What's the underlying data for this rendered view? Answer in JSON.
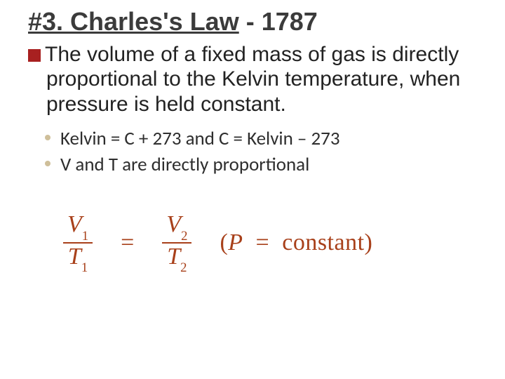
{
  "title": {
    "underlined": "#3. Charles's Law",
    "rest": " - 1787"
  },
  "main": "The volume of a fixed mass of gas is directly proportional to the Kelvin temperature, when pressure is held constant.",
  "subs": [
    "Kelvin = C + 273  and  C = Kelvin – 273",
    "V and T are directly proportional"
  ],
  "equation": {
    "f1": {
      "numVar": "V",
      "numSub": "1",
      "denVar": "T",
      "denSub": "1"
    },
    "eq1": "=",
    "f2": {
      "numVar": "V",
      "numSub": "2",
      "denVar": "T",
      "denSub": "2"
    },
    "paren": {
      "open": "(",
      "P": "P",
      "eq": "=",
      "word": "constant",
      "close": ")"
    }
  },
  "colors": {
    "accent": "#a8401a",
    "bullet": "#a82020",
    "dot": "#cfbf9a"
  }
}
